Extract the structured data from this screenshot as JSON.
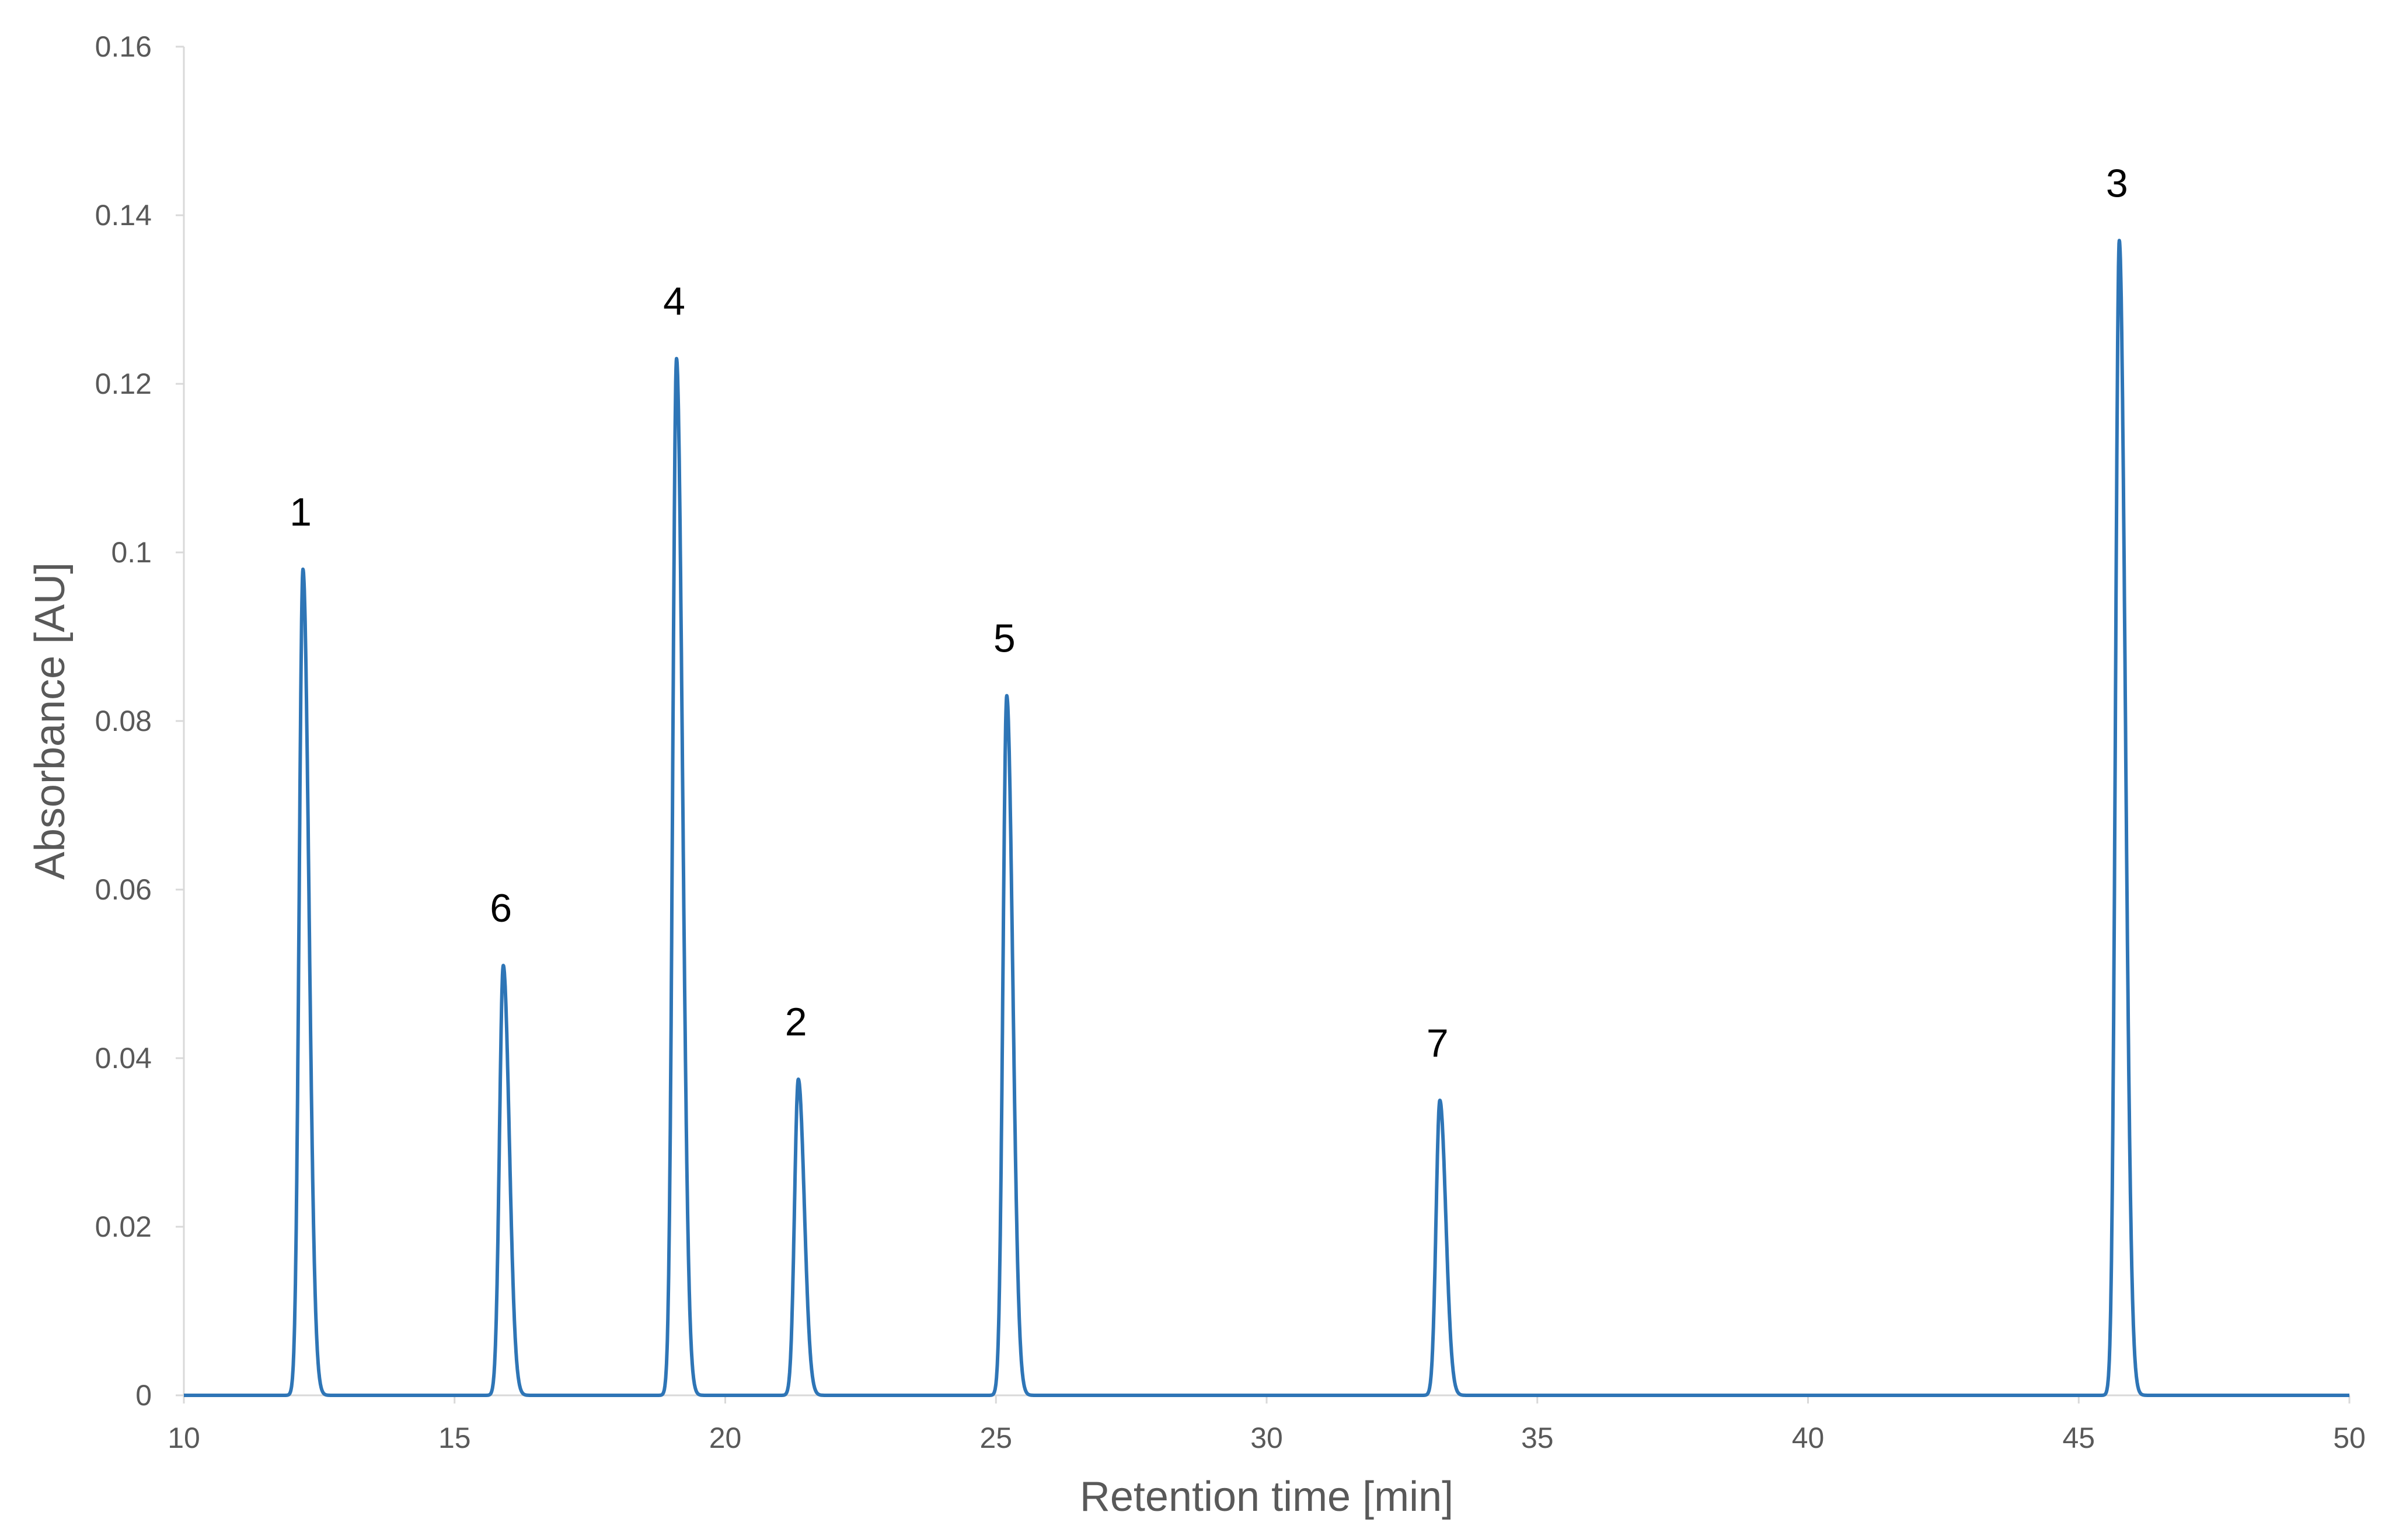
{
  "chart_data": {
    "type": "line",
    "title": "",
    "xlabel": "Retention time [min]",
    "ylabel": "Absorbance [AU]",
    "xlim": [
      10,
      50
    ],
    "ylim": [
      0,
      0.16
    ],
    "x_ticks": [
      "10",
      "15",
      "20",
      "25",
      "30",
      "35",
      "40",
      "45",
      "50"
    ],
    "y_ticks": [
      "0",
      "0.02",
      "0.04",
      "0.06",
      "0.08",
      "0.1",
      "0.12",
      "0.14",
      "0.16"
    ],
    "grid": false,
    "legend": "none",
    "line_color": "#2E75B6",
    "axis_color": "#D9D9D9",
    "series": [
      {
        "peaks": [
          {
            "label": "1",
            "x": 12.2,
            "y": 0.098
          },
          {
            "label": "6",
            "x": 15.9,
            "y": 0.051
          },
          {
            "label": "4",
            "x": 19.1,
            "y": 0.123
          },
          {
            "label": "2",
            "x": 21.35,
            "y": 0.0375
          },
          {
            "label": "5",
            "x": 25.2,
            "y": 0.083
          },
          {
            "label": "7",
            "x": 33.2,
            "y": 0.035
          },
          {
            "label": "3",
            "x": 45.75,
            "y": 0.137
          }
        ]
      }
    ]
  }
}
